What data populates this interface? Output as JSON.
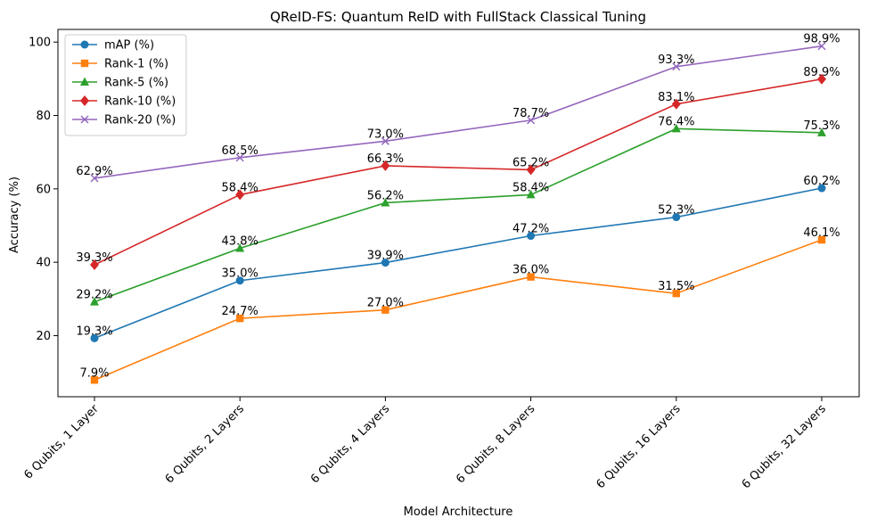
{
  "chart_data": {
    "type": "line",
    "title": "QReID-FS: Quantum ReID with FullStack Classical Tuning",
    "xlabel": "Model Architecture",
    "ylabel": "Accuracy (%)",
    "categories": [
      "6 Qubits, 1 Layer",
      "6 Qubits, 2 Layers",
      "6 Qubits, 4 Layers",
      "6 Qubits, 8 Layers",
      "6 Qubits, 16 Layers",
      "6 Qubits, 32 Layers"
    ],
    "ylim": [
      3.35,
      103.45
    ],
    "yticks": [
      20,
      40,
      60,
      80,
      100
    ],
    "grid": false,
    "legend_position": "top-left",
    "series": [
      {
        "name": "mAP (%)",
        "color": "#1f77b4",
        "marker": "circle",
        "values": [
          19.3,
          35.0,
          39.9,
          47.2,
          52.3,
          60.2
        ],
        "labels": [
          "19.3%",
          "35.0%",
          "39.9%",
          "47.2%",
          "52.3%",
          "60.2%"
        ]
      },
      {
        "name": "Rank-1 (%)",
        "color": "#ff7f0e",
        "marker": "square",
        "values": [
          7.9,
          24.7,
          27.0,
          36.0,
          31.5,
          46.1
        ],
        "labels": [
          "7.9%",
          "24.7%",
          "27.0%",
          "36.0%",
          "31.5%",
          "46.1%"
        ]
      },
      {
        "name": "Rank-5 (%)",
        "color": "#2ca02c",
        "marker": "triangle",
        "values": [
          29.2,
          43.8,
          56.2,
          58.4,
          76.4,
          75.3
        ],
        "labels": [
          "29.2%",
          "43.8%",
          "56.2%",
          "58.4%",
          "76.4%",
          "75.3%"
        ]
      },
      {
        "name": "Rank-10 (%)",
        "color": "#d62728",
        "marker": "diamond",
        "values": [
          39.3,
          58.4,
          66.3,
          65.2,
          83.1,
          89.9
        ],
        "labels": [
          "39.3%",
          "58.4%",
          "66.3%",
          "65.2%",
          "83.1%",
          "89.9%"
        ]
      },
      {
        "name": "Rank-20 (%)",
        "color": "#9467bd",
        "marker": "x",
        "values": [
          62.9,
          68.5,
          73.0,
          78.7,
          93.3,
          98.9
        ],
        "labels": [
          "62.9%",
          "68.5%",
          "73.0%",
          "78.7%",
          "93.3%",
          "98.9%"
        ]
      }
    ]
  }
}
